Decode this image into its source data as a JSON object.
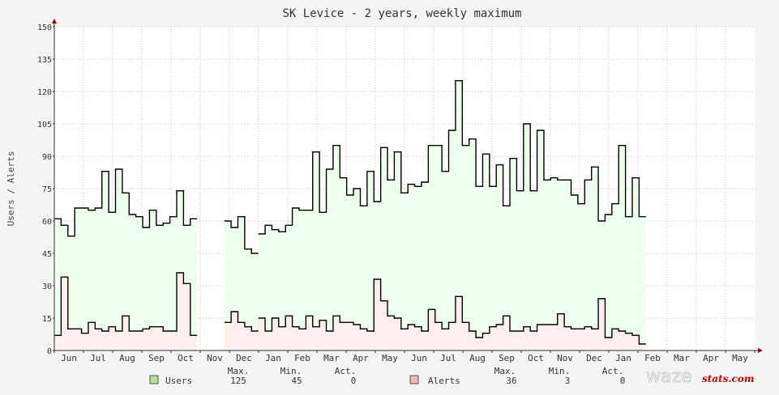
{
  "title": "SK Levice - 2 years, weekly maximum",
  "ylabel": "Users / Alerts",
  "brand": {
    "part1": "waze",
    "part2": "stats.com",
    "color1": "#ffffff",
    "color2": "#cc0000"
  },
  "colors": {
    "background": "#f4f4f4",
    "plot": "#ffffff",
    "grid": "#ff9999",
    "users_fill": "#eeffee",
    "alerts_fill": "#ffeeee",
    "line": "#000000",
    "users_swatch": "#b6e2a1",
    "alerts_swatch": "#f4b9b9",
    "arrow": "#990000"
  },
  "legend": {
    "users": {
      "name": "Users",
      "max_label": "Max.",
      "min_label": "Min.",
      "act_label": "Act.",
      "max": "125",
      "min": "45",
      "act": "0"
    },
    "alerts": {
      "name": "Alerts",
      "max_label": "Max.",
      "min_label": "Min.",
      "act_label": "Act.",
      "max": "36",
      "min": "3",
      "act": "0"
    }
  },
  "chart_data": {
    "type": "area",
    "title": "SK Levice - 2 years, weekly maximum",
    "ylabel": "Users / Alerts",
    "xlabel": "",
    "ylim": [
      0,
      150
    ],
    "yticks": [
      0,
      15,
      30,
      45,
      60,
      75,
      90,
      105,
      120,
      135,
      150
    ],
    "x_tick_labels": [
      "Jun",
      "Jul",
      "Aug",
      "Sep",
      "Oct",
      "Nov",
      "Dec",
      "Jan",
      "Feb",
      "Mar",
      "Apr",
      "May",
      "Jun",
      "Jul",
      "Aug",
      "Sep",
      "Oct",
      "Nov",
      "Dec",
      "Jan",
      "Feb",
      "Mar",
      "Apr",
      "May"
    ],
    "x_unit": "weeks",
    "x_range": [
      0,
      103
    ],
    "grid": true,
    "series": [
      {
        "name": "Users",
        "segments": [
          {
            "start_week": 0,
            "values": [
              61,
              58,
              53,
              66,
              66,
              65,
              66,
              83,
              64,
              84,
              73,
              63,
              62,
              57,
              65,
              58,
              59,
              62,
              74,
              58,
              61
            ]
          },
          {
            "start_week": 25,
            "values": [
              60,
              57,
              62,
              47,
              45
            ]
          },
          {
            "start_week": 30,
            "values": [
              54,
              58,
              56,
              55,
              58,
              66,
              65,
              65,
              92,
              64,
              84,
              95,
              80,
              72,
              75,
              67,
              83,
              69,
              94,
              79,
              92,
              73,
              77,
              76,
              78,
              95,
              95,
              83,
              102,
              125,
              95,
              98,
              76,
              91,
              76,
              86,
              67,
              89,
              74,
              105,
              74,
              102,
              79,
              80,
              79,
              79,
              72,
              68,
              79,
              85,
              60,
              63,
              68,
              95,
              62,
              80,
              62
            ]
          }
        ]
      },
      {
        "name": "Alerts",
        "segments": [
          {
            "start_week": 0,
            "values": [
              7,
              34,
              10,
              10,
              8,
              13,
              10,
              9,
              11,
              9,
              16,
              9,
              9,
              10,
              11,
              11,
              9,
              9,
              36,
              31,
              7
            ]
          },
          {
            "start_week": 25,
            "values": [
              13,
              18,
              13,
              11,
              9
            ]
          },
          {
            "start_week": 30,
            "values": [
              15,
              9,
              15,
              11,
              16,
              11,
              10,
              16,
              11,
              14,
              9,
              16,
              13,
              13,
              12,
              10,
              9,
              33,
              23,
              16,
              15,
              10,
              12,
              11,
              9,
              19,
              13,
              10,
              13,
              25,
              13,
              9,
              6,
              8,
              11,
              12,
              16,
              9,
              9,
              11,
              9,
              12,
              12,
              12,
              17,
              11,
              10,
              10,
              11,
              10,
              24,
              6,
              10,
              9,
              8,
              7,
              3
            ]
          }
        ]
      }
    ]
  }
}
